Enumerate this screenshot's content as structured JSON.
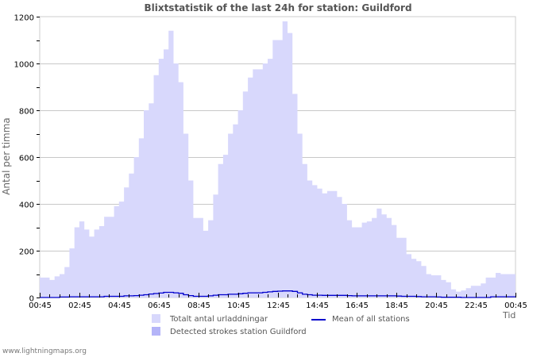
{
  "title": "Blixtstatistik of the last 24h for station: Guildford",
  "ylabel": "Antal per timma",
  "xlabel": "Tid",
  "footer": "www.lightningmaps.org",
  "colors": {
    "total_fill": "#d8d8fc",
    "station_fill": "#b4b4f8",
    "mean_line": "#0000cc",
    "grid": "#c8c8c8"
  },
  "legend": [
    {
      "label": "Totalt antal urladdningar",
      "type": "area",
      "color": "#d8d8fc"
    },
    {
      "label": "Detected strokes station Guildford",
      "type": "area",
      "color": "#b4b4f8"
    },
    {
      "label": "Mean of all stations",
      "type": "line",
      "color": "#0000cc"
    }
  ],
  "chart_data": {
    "type": "area",
    "title": "Blixtstatistik of the last 24h for station: Guildford",
    "xlabel": "Tid",
    "ylabel": "Antal per timma",
    "ylim": [
      0,
      1200
    ],
    "yticks": [
      0,
      200,
      400,
      600,
      800,
      1000,
      1200
    ],
    "xticks": [
      "00:45",
      "02:45",
      "04:45",
      "06:45",
      "08:45",
      "10:45",
      "12:45",
      "14:45",
      "16:45",
      "18:45",
      "20:45",
      "22:45",
      "00:45"
    ],
    "grid": true,
    "legend_position": "bottom",
    "x": [
      "00:45",
      "01:00",
      "01:15",
      "01:30",
      "01:45",
      "02:00",
      "02:15",
      "02:30",
      "02:45",
      "03:00",
      "03:15",
      "03:30",
      "03:45",
      "04:00",
      "04:15",
      "04:30",
      "04:45",
      "05:00",
      "05:15",
      "05:30",
      "05:45",
      "06:00",
      "06:15",
      "06:30",
      "06:45",
      "07:00",
      "07:15",
      "07:30",
      "07:45",
      "08:00",
      "08:15",
      "08:30",
      "08:45",
      "09:00",
      "09:15",
      "09:30",
      "09:45",
      "10:00",
      "10:15",
      "10:30",
      "10:45",
      "11:00",
      "11:15",
      "11:30",
      "11:45",
      "12:00",
      "12:15",
      "12:30",
      "12:45",
      "13:00",
      "13:15",
      "13:30",
      "13:45",
      "14:00",
      "14:15",
      "14:30",
      "14:45",
      "15:00",
      "15:15",
      "15:30",
      "15:45",
      "16:00",
      "16:15",
      "16:30",
      "16:45",
      "17:00",
      "17:15",
      "17:30",
      "17:45",
      "18:00",
      "18:15",
      "18:30",
      "18:45",
      "19:00",
      "19:15",
      "19:30",
      "19:45",
      "20:00",
      "20:15",
      "20:30",
      "20:45",
      "21:00",
      "21:15",
      "21:30",
      "21:45",
      "22:00",
      "22:15",
      "22:30",
      "22:45",
      "23:00",
      "23:15",
      "23:30",
      "23:45",
      "00:00",
      "00:15",
      "00:30"
    ],
    "series": [
      {
        "name": "Totalt antal urladdningar",
        "type": "area",
        "values": [
          85,
          85,
          75,
          90,
          100,
          130,
          210,
          300,
          325,
          290,
          260,
          290,
          305,
          345,
          345,
          390,
          410,
          470,
          530,
          600,
          680,
          800,
          830,
          950,
          1020,
          1060,
          1140,
          1000,
          920,
          700,
          500,
          340,
          340,
          285,
          330,
          440,
          570,
          610,
          700,
          740,
          800,
          880,
          940,
          975,
          975,
          1000,
          1020,
          1100,
          1100,
          1180,
          1130,
          870,
          700,
          570,
          500,
          480,
          465,
          445,
          455,
          455,
          430,
          400,
          330,
          300,
          300,
          320,
          325,
          340,
          380,
          355,
          340,
          310,
          255,
          255,
          185,
          165,
          155,
          135,
          100,
          95,
          95,
          75,
          65,
          35,
          25,
          30,
          40,
          50,
          50,
          60,
          85,
          85,
          105,
          100,
          100,
          100
        ]
      },
      {
        "name": "Detected strokes station Guildford",
        "type": "area",
        "values": [
          0,
          0,
          0,
          0,
          0,
          0,
          0,
          0,
          0,
          0,
          0,
          0,
          0,
          0,
          0,
          0,
          0,
          0,
          0,
          0,
          0,
          0,
          0,
          0,
          0,
          0,
          0,
          0,
          0,
          0,
          0,
          0,
          0,
          0,
          0,
          0,
          0,
          0,
          0,
          0,
          0,
          0,
          0,
          0,
          0,
          0,
          0,
          0,
          0,
          0,
          0,
          0,
          0,
          0,
          0,
          0,
          0,
          0,
          0,
          0,
          0,
          0,
          0,
          0,
          0,
          0,
          0,
          0,
          0,
          0,
          0,
          0,
          0,
          0,
          0,
          0,
          0,
          0,
          0,
          0,
          0,
          0,
          0,
          0,
          0,
          0,
          0,
          0,
          0,
          0,
          0,
          0,
          0,
          0,
          0,
          0
        ]
      },
      {
        "name": "Mean of all stations",
        "type": "line",
        "values": [
          0,
          0,
          0,
          0,
          2,
          2,
          3,
          3,
          3,
          3,
          3,
          3,
          3,
          5,
          5,
          5,
          5,
          7,
          7,
          8,
          10,
          12,
          15,
          17,
          19,
          22,
          22,
          20,
          18,
          12,
          8,
          5,
          5,
          5,
          7,
          10,
          12,
          12,
          14,
          14,
          16,
          18,
          20,
          20,
          20,
          22,
          24,
          26,
          27,
          28,
          28,
          26,
          20,
          14,
          12,
          10,
          10,
          9,
          9,
          9,
          9,
          9,
          8,
          7,
          7,
          7,
          7,
          7,
          7,
          7,
          7,
          7,
          6,
          5,
          5,
          5,
          4,
          3,
          3,
          3,
          2,
          1,
          1,
          1,
          1,
          0,
          0,
          0,
          0,
          0,
          0,
          3,
          3,
          3,
          3,
          3
        ]
      }
    ]
  }
}
